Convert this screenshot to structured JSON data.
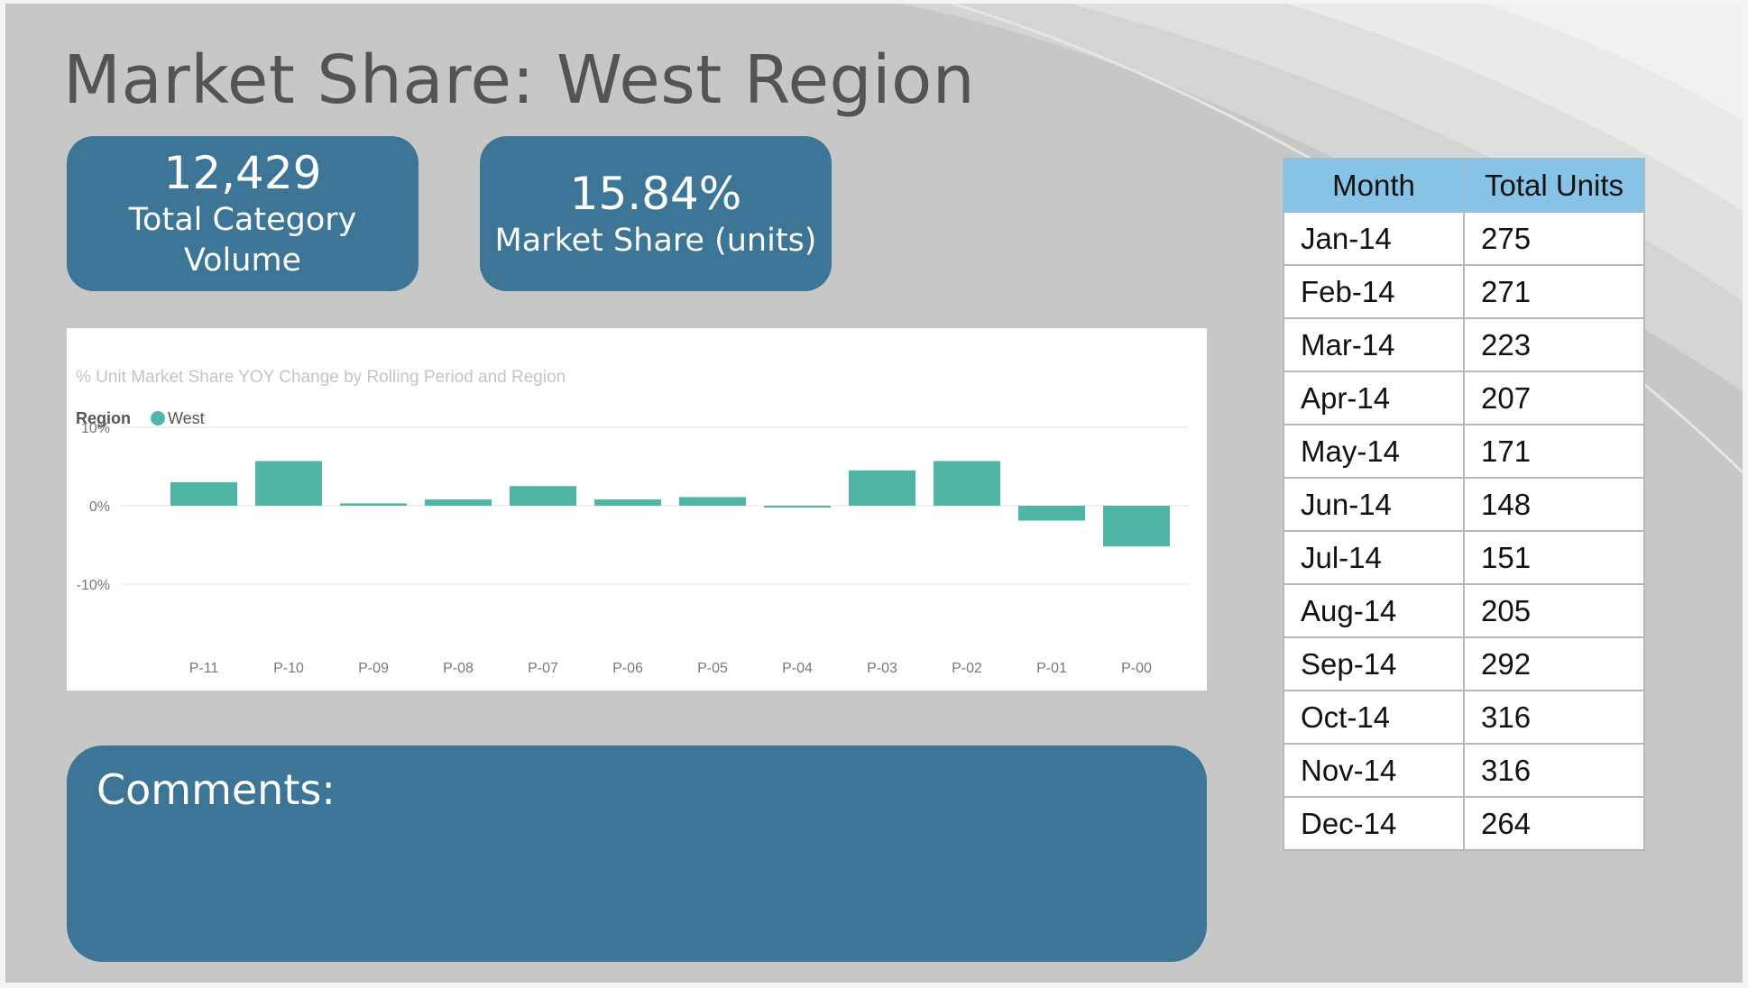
{
  "slide": {
    "title": "Market Share: West Region"
  },
  "kpis": [
    {
      "value": "12,429",
      "label": "Total Category Volume"
    },
    {
      "value": "15.84%",
      "label": "Market Share (units)"
    }
  ],
  "comments": {
    "label": "Comments:"
  },
  "table": {
    "headers": [
      "Month",
      "Total Units"
    ],
    "rows": [
      [
        "Jan-14",
        "275"
      ],
      [
        "Feb-14",
        "271"
      ],
      [
        "Mar-14",
        "223"
      ],
      [
        "Apr-14",
        "207"
      ],
      [
        "May-14",
        "171"
      ],
      [
        "Jun-14",
        "148"
      ],
      [
        "Jul-14",
        "151"
      ],
      [
        "Aug-14",
        "205"
      ],
      [
        "Sep-14",
        "292"
      ],
      [
        "Oct-14",
        "316"
      ],
      [
        "Nov-14",
        "316"
      ],
      [
        "Dec-14",
        "264"
      ]
    ]
  },
  "colors": {
    "bar": "#4fb6a5",
    "kpi_bg": "#3d7597",
    "header_bg": "#86c3e6",
    "slide_bg": "#c6c7c6"
  },
  "chart_data": {
    "type": "bar",
    "title": "% Unit Market Share YOY Change by Rolling Period and Region",
    "legend_title": "Region",
    "legend_position": "top-left",
    "categories": [
      "P-11",
      "P-10",
      "P-09",
      "P-08",
      "P-07",
      "P-06",
      "P-05",
      "P-04",
      "P-03",
      "P-02",
      "P-01",
      "P-00"
    ],
    "series": [
      {
        "name": "West",
        "values": [
          3.0,
          5.7,
          0.3,
          0.8,
          2.5,
          0.8,
          1.1,
          -0.1,
          4.5,
          5.7,
          -1.9,
          -5.2
        ]
      }
    ],
    "yticks": [
      "10%",
      "0%",
      "-10%"
    ],
    "ylim": [
      -10,
      10
    ],
    "grid": true
  }
}
